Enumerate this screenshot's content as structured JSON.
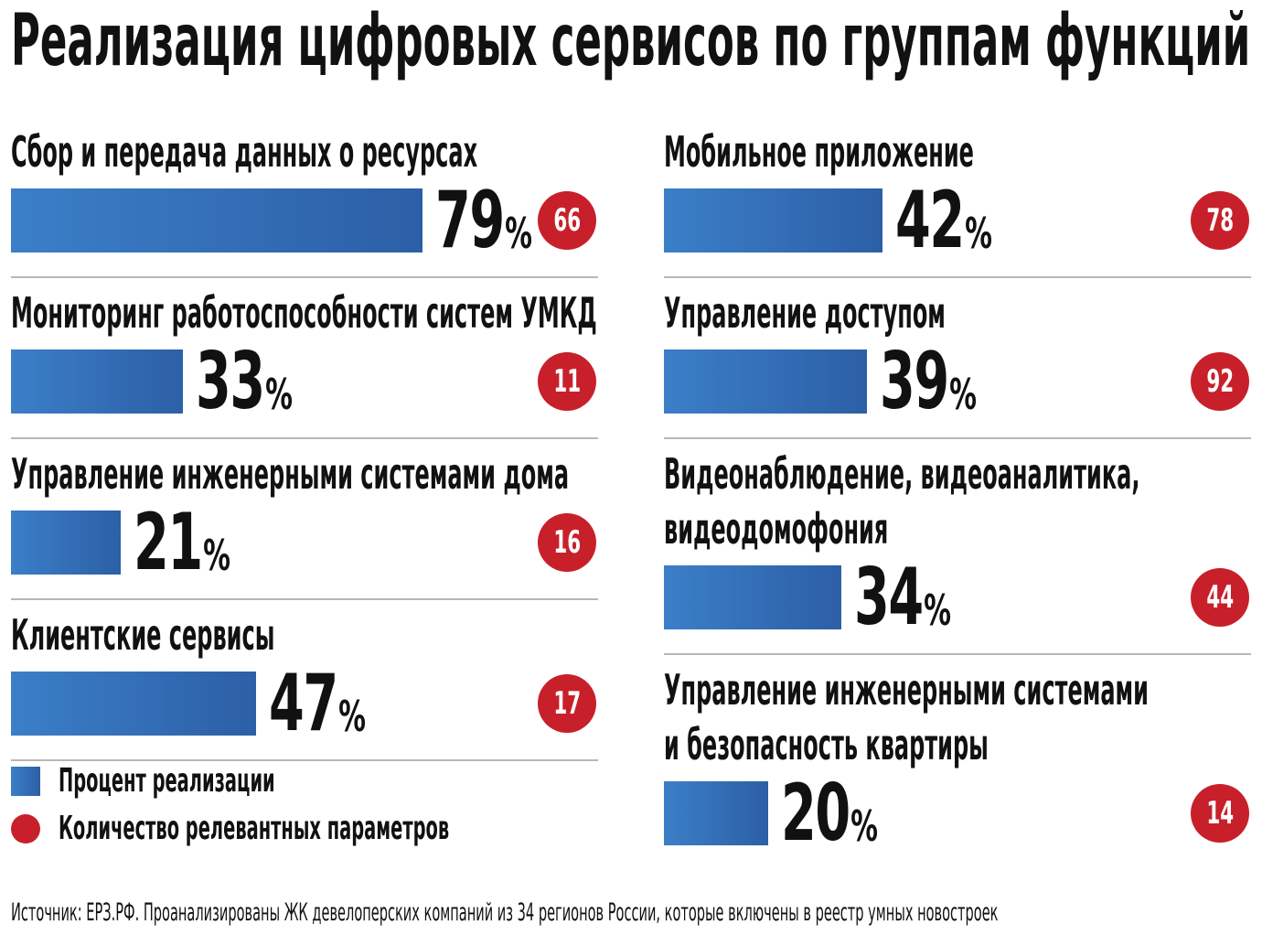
{
  "title": "Реализация цифровых сервисов по группам функций",
  "percent_sign": "%",
  "legend": {
    "bar_label": "Процент реализации",
    "dot_label": "Количество релевантных параметров"
  },
  "source": "Источник: ЕРЗ.РФ. Проанализированы ЖК девелоперских компаний из 34 регионов России, которые включены в реестр умных новостроек",
  "colors": {
    "bar": "#2f6db5",
    "badge": "#c8202a",
    "divider": "#b7b7b7"
  },
  "chart_data": {
    "type": "bar",
    "title": "Реализация цифровых сервисов по группам функций",
    "xlabel": "",
    "ylabel": "",
    "ylim": [
      0,
      100
    ],
    "categories": [
      "Сбор и передача данных о ресурсах",
      "Мониторинг работоспособности систем УМКД",
      "Управление инженерными системами дома",
      "Клиентские сервисы",
      "Мобильное приложение",
      "Управление доступом",
      "Видеонаблюдение, видеоаналитика, видеодомофония",
      "Управление инженерными системами и безопасность квартиры"
    ],
    "series": [
      {
        "name": "Процент реализации",
        "values": [
          79,
          33,
          21,
          47,
          42,
          39,
          34,
          20
        ]
      },
      {
        "name": "Количество релевантных параметров",
        "values": [
          66,
          11,
          16,
          17,
          78,
          92,
          44,
          14
        ]
      }
    ],
    "legend": "bottom-left",
    "grid": false
  },
  "items": [
    {
      "label_lines": [
        "Сбор и передача данных о ресурсах"
      ],
      "percent": 79,
      "count": 66
    },
    {
      "label_lines": [
        "Мониторинг работоспособности систем УМКД"
      ],
      "percent": 33,
      "count": 11
    },
    {
      "label_lines": [
        "Управление инженерными системами дома"
      ],
      "percent": 21,
      "count": 16
    },
    {
      "label_lines": [
        "Клиентские сервисы"
      ],
      "percent": 47,
      "count": 17
    },
    {
      "label_lines": [
        "Мобильное приложение"
      ],
      "percent": 42,
      "count": 78
    },
    {
      "label_lines": [
        "Управление доступом"
      ],
      "percent": 39,
      "count": 92
    },
    {
      "label_lines": [
        "Видеонаблюдение, видеоаналитика,",
        "видеодомофония"
      ],
      "percent": 34,
      "count": 44
    },
    {
      "label_lines": [
        "Управление инженерными системами",
        "и безопасность квартиры"
      ],
      "percent": 20,
      "count": 14
    }
  ]
}
